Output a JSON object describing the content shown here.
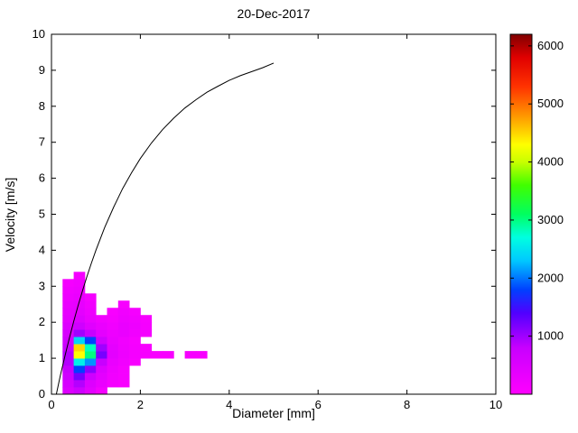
{
  "chart_data": {
    "type": "heatmap",
    "title": "20-Dec-2017",
    "xlabel": "Diameter [mm]",
    "ylabel": "Velocity [m/s]",
    "xlim": [
      0,
      10
    ],
    "ylim": [
      0,
      10
    ],
    "xticks": [
      0,
      2,
      4,
      6,
      8,
      10
    ],
    "yticks": [
      0,
      1,
      2,
      3,
      4,
      5,
      6,
      7,
      8,
      9,
      10
    ],
    "grid": false,
    "legend": "none",
    "background": "#ffffff",
    "colorbar": {
      "position": "right",
      "min": 0,
      "max": 6200,
      "ticks": [
        1000,
        2000,
        3000,
        4000,
        5000,
        6000
      ],
      "stops": [
        [
          0,
          "#ff00ff"
        ],
        [
          800,
          "#c800ff"
        ],
        [
          1400,
          "#5000ff"
        ],
        [
          1800,
          "#0040ff"
        ],
        [
          2300,
          "#00c8ff"
        ],
        [
          2700,
          "#00ffe0"
        ],
        [
          3100,
          "#00ff60"
        ],
        [
          3600,
          "#40ff00"
        ],
        [
          4000,
          "#c8ff00"
        ],
        [
          4300,
          "#ffff00"
        ],
        [
          4800,
          "#ff9600"
        ],
        [
          5300,
          "#ff3200"
        ],
        [
          5800,
          "#e00000"
        ],
        [
          6200,
          "#800000"
        ]
      ]
    },
    "heatmap": {
      "x0": 0.25,
      "dx": 0.25,
      "y0": 0,
      "dy": 0.2,
      "values": [
        [
          500,
          700,
          400,
          150,
          0,
          0,
          0,
          0,
          0,
          0,
          0,
          0,
          0
        ],
        [
          600,
          900,
          500,
          300,
          150,
          100,
          0,
          0,
          0,
          0,
          0,
          0,
          0
        ],
        [
          700,
          1200,
          700,
          400,
          200,
          150,
          0,
          0,
          0,
          0,
          0,
          0,
          0
        ],
        [
          800,
          1800,
          1100,
          500,
          250,
          150,
          0,
          0,
          0,
          0,
          0,
          0,
          0
        ],
        [
          900,
          2600,
          2100,
          800,
          300,
          200,
          100,
          0,
          0,
          0,
          0,
          0,
          0
        ],
        [
          900,
          4300,
          3000,
          1200,
          400,
          250,
          150,
          120,
          100,
          100,
          0,
          120,
          100
        ],
        [
          800,
          4500,
          2800,
          1000,
          380,
          230,
          140,
          100,
          0,
          0,
          0,
          0,
          0
        ],
        [
          700,
          2400,
          1800,
          700,
          300,
          200,
          120,
          0,
          0,
          0,
          0,
          0,
          0
        ],
        [
          600,
          1000,
          800,
          400,
          250,
          300,
          200,
          150,
          0,
          0,
          0,
          0,
          0
        ],
        [
          500,
          700,
          450,
          300,
          200,
          300,
          250,
          150,
          0,
          0,
          0,
          0,
          0
        ],
        [
          400,
          500,
          300,
          200,
          150,
          250,
          200,
          120,
          0,
          0,
          0,
          0,
          0
        ],
        [
          350,
          400,
          250,
          0,
          100,
          200,
          150,
          0,
          0,
          0,
          0,
          0,
          0
        ],
        [
          300,
          350,
          200,
          0,
          0,
          120,
          0,
          0,
          0,
          0,
          0,
          0,
          0
        ],
        [
          250,
          300,
          150,
          0,
          0,
          0,
          0,
          0,
          0,
          0,
          0,
          0,
          0
        ],
        [
          200,
          250,
          0,
          0,
          0,
          0,
          0,
          0,
          0,
          0,
          0,
          0,
          0
        ],
        [
          150,
          200,
          0,
          0,
          0,
          0,
          0,
          0,
          0,
          0,
          0,
          0,
          0
        ],
        [
          0,
          150,
          0,
          0,
          0,
          0,
          0,
          0,
          0,
          0,
          0,
          0,
          0
        ]
      ]
    },
    "curve": {
      "color": "#000000",
      "points": [
        [
          0.11,
          0.0
        ],
        [
          0.2,
          0.52
        ],
        [
          0.3,
          1.05
        ],
        [
          0.4,
          1.55
        ],
        [
          0.5,
          2.02
        ],
        [
          0.6,
          2.46
        ],
        [
          0.7,
          2.88
        ],
        [
          0.8,
          3.28
        ],
        [
          0.9,
          3.65
        ],
        [
          1.0,
          4.0
        ],
        [
          1.2,
          4.64
        ],
        [
          1.4,
          5.2
        ],
        [
          1.6,
          5.71
        ],
        [
          1.8,
          6.15
        ],
        [
          2.0,
          6.55
        ],
        [
          2.25,
          6.98
        ],
        [
          2.5,
          7.35
        ],
        [
          2.75,
          7.67
        ],
        [
          3.0,
          7.95
        ],
        [
          3.25,
          8.18
        ],
        [
          3.5,
          8.39
        ],
        [
          3.75,
          8.56
        ],
        [
          4.0,
          8.72
        ],
        [
          4.25,
          8.85
        ],
        [
          4.5,
          8.96
        ],
        [
          4.75,
          9.07
        ],
        [
          5.0,
          9.2
        ]
      ]
    }
  }
}
